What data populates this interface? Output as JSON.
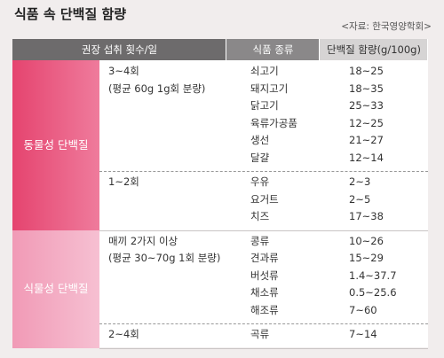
{
  "title": "식품 속 단백질 함량",
  "source": "<자료: 한국영양학회>",
  "table": {
    "headers": [
      "권장 섭취 횟수/일",
      "식품 종류",
      "단백질 함량(g/100g)"
    ],
    "groups": [
      {
        "name": "동물성 단백질",
        "subgroups": [
          {
            "frequency": [
              "3~4회",
              "(평균 60g 1g회 분량)"
            ],
            "items": [
              {
                "food": "쇠고기",
                "protein": "18~25"
              },
              {
                "food": "돼지고기",
                "protein": "18~35"
              },
              {
                "food": "닭고기",
                "protein": "25~33"
              },
              {
                "food": "육류가공품",
                "protein": "12~25"
              },
              {
                "food": "생선",
                "protein": "21~27"
              },
              {
                "food": "달걀",
                "protein": "12~14"
              }
            ]
          },
          {
            "frequency": [
              "1~2회"
            ],
            "items": [
              {
                "food": "우유",
                "protein": "2~3"
              },
              {
                "food": "요거트",
                "protein": "2~5"
              },
              {
                "food": "치즈",
                "protein": "17~38"
              }
            ]
          }
        ]
      },
      {
        "name": "식물성 단백질",
        "subgroups": [
          {
            "frequency": [
              "매끼 2가지 이상",
              "(평균 30~70g 1회 분량)"
            ],
            "items": [
              {
                "food": "콩류",
                "protein": "10~26"
              },
              {
                "food": "견과류",
                "protein": "15~29"
              },
              {
                "food": "버섯류",
                "protein": "1.4~37.7"
              },
              {
                "food": "채소류",
                "protein": "0.5~25.6"
              },
              {
                "food": "해조류",
                "protein": "7~60"
              }
            ]
          },
          {
            "frequency": [
              "2~4회"
            ],
            "items": [
              {
                "food": "곡류",
                "protein": "7~14"
              }
            ]
          }
        ]
      }
    ]
  }
}
